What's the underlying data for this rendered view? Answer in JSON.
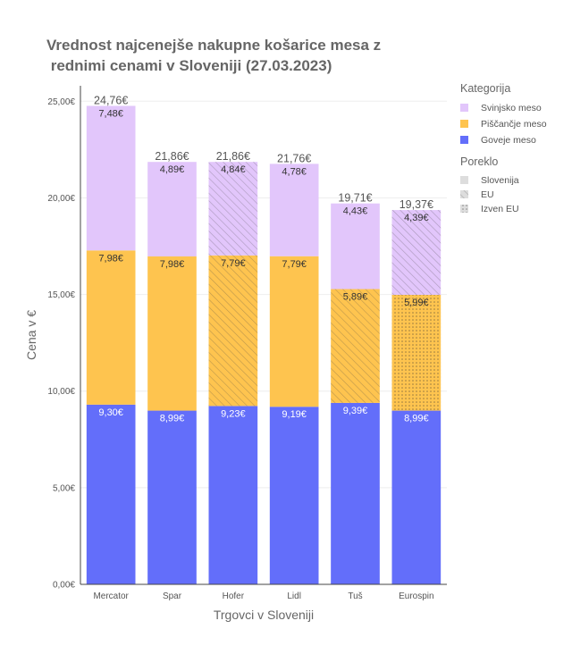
{
  "chart_data": {
    "type": "bar",
    "stacked": true,
    "title_lines": [
      "Vrednost najcenejše nakupne košarice mesa z",
      " rednimi cenami v Sloveniji (27.03.2023)"
    ],
    "xlabel": "Trgovci v Sloveniji",
    "ylabel": "Cena v €",
    "ylim": [
      0,
      25.8
    ],
    "y_ticks": [
      0,
      5,
      10,
      15,
      20,
      25
    ],
    "y_tick_labels": [
      "0,00€",
      "5,00€",
      "10,00€",
      "15,00€",
      "20,00€",
      "25,00€"
    ],
    "categories": [
      "Mercator",
      "Spar",
      "Hofer",
      "Lidl",
      "Tuš",
      "Eurospin"
    ],
    "series": [
      {
        "name": "Goveje meso",
        "color": "#636efa",
        "values": [
          9.3,
          8.99,
          9.23,
          9.19,
          9.39,
          8.99
        ],
        "labels": [
          "9,30€",
          "8,99€",
          "9,23€",
          "9,19€",
          "9,39€",
          "8,99€"
        ],
        "origin": [
          "Slovenija",
          "Slovenija",
          "Slovenija",
          "Slovenija",
          "Slovenija",
          "Slovenija"
        ]
      },
      {
        "name": "Piščančje meso",
        "color": "#fec44f",
        "values": [
          7.98,
          7.98,
          7.79,
          7.79,
          5.89,
          5.99
        ],
        "labels": [
          "7,98€",
          "7,98€",
          "7,79€",
          "7,79€",
          "5,89€",
          "5,99€"
        ],
        "origin": [
          "Slovenija",
          "Slovenija",
          "EU",
          "Slovenija",
          "EU",
          "Izven EU"
        ]
      },
      {
        "name": "Svinjsko meso",
        "color": "#e2c6fb",
        "values": [
          7.48,
          4.89,
          4.84,
          4.78,
          4.43,
          4.39
        ],
        "labels": [
          "7,48€",
          "4,89€",
          "4,84€",
          "4,78€",
          "4,43€",
          "4,39€"
        ],
        "origin": [
          "Slovenija",
          "Slovenija",
          "EU",
          "Slovenija",
          "Slovenija",
          "EU"
        ]
      }
    ],
    "totals": [
      24.76,
      21.86,
      21.86,
      21.76,
      19.71,
      19.37
    ],
    "total_labels": [
      "24,76€",
      "21,86€",
      "21,86€",
      "21,76€",
      "19,71€",
      "19,37€"
    ],
    "grid": true,
    "legend": {
      "placement": "right",
      "category_title": "Kategorija",
      "category_items": [
        {
          "name": "Svinjsko meso",
          "color": "#e2c6fb"
        },
        {
          "name": "Piščančje meso",
          "color": "#fec44f"
        },
        {
          "name": "Goveje meso",
          "color": "#636efa"
        }
      ],
      "origin_title": "Poreklo",
      "origin_items": [
        {
          "name": "Slovenija",
          "pattern": "solid"
        },
        {
          "name": "EU",
          "pattern": "hatch"
        },
        {
          "name": "Izven EU",
          "pattern": "dots"
        }
      ]
    }
  }
}
